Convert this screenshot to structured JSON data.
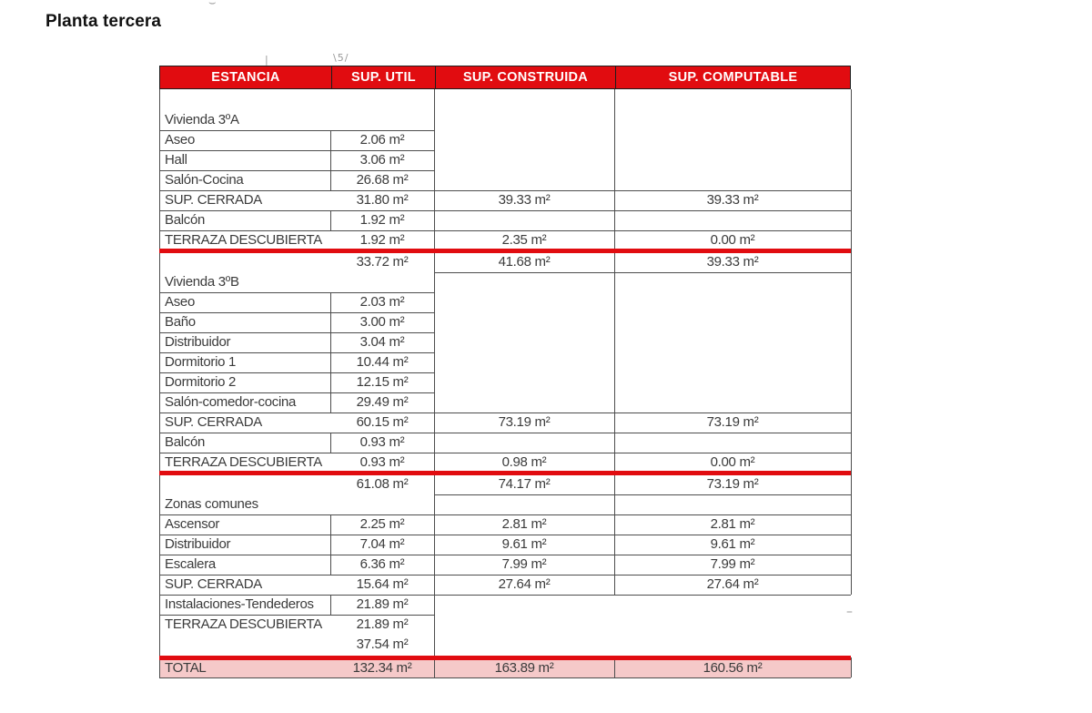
{
  "page_title": "Planta tercera",
  "colors": {
    "header_red": "#e10c10",
    "total_pink": "#f5c9c9",
    "grid": "#4d4d4d",
    "text": "#3b3b3b"
  },
  "table": {
    "headers": [
      "ESTANCIA",
      "SUP. UTIL",
      "SUP. CONSTRUIDA",
      "SUP. COMPUTABLE"
    ],
    "unit": "m²",
    "rows": [
      {
        "kind": "section",
        "name": "Vivienda 3ºA"
      },
      {
        "kind": "item",
        "name": "Aseo",
        "util": "2.06 m²"
      },
      {
        "kind": "item",
        "name": "Hall",
        "util": "3.06 m²"
      },
      {
        "kind": "item",
        "name": "Salón-Cocina",
        "util": "26.68 m²"
      },
      {
        "kind": "cerrada",
        "name": "SUP. CERRADA",
        "util": "31.80 m²",
        "construida": "39.33 m²",
        "computable": "39.33 m²"
      },
      {
        "kind": "balcon",
        "name": "Balcón",
        "util": "1.92 m²"
      },
      {
        "kind": "terraza",
        "name": "TERRAZA DESCUBIERTA",
        "util": "1.92 m²",
        "construida": "2.35 m²",
        "computable": "0.00 m²"
      },
      {
        "kind": "subtotal_section",
        "name": "Vivienda 3ºB",
        "util": "33.72 m²",
        "construida": "41.68 m²",
        "computable": "39.33 m²"
      },
      {
        "kind": "item",
        "name": "Aseo",
        "util": "2.03 m²"
      },
      {
        "kind": "item",
        "name": "Baño",
        "util": "3.00 m²"
      },
      {
        "kind": "item",
        "name": "Distribuidor",
        "util": "3.04 m²"
      },
      {
        "kind": "item",
        "name": "Dormitorio 1",
        "util": "10.44 m²"
      },
      {
        "kind": "item",
        "name": "Dormitorio 2",
        "util": "12.15 m²"
      },
      {
        "kind": "item",
        "name": "Salón-comedor-cocina",
        "util": "29.49 m²"
      },
      {
        "kind": "cerrada",
        "name": "SUP. CERRADA",
        "util": "60.15 m²",
        "construida": "73.19 m²",
        "computable": "73.19 m²"
      },
      {
        "kind": "balcon",
        "name": "Balcón",
        "util": "0.93 m²"
      },
      {
        "kind": "terraza",
        "name": "TERRAZA DESCUBIERTA",
        "util": "0.93 m²",
        "construida": "0.98 m²",
        "computable": "0.00 m²"
      },
      {
        "kind": "subtotal_section",
        "name": "Zonas comunes",
        "util": "61.08 m²",
        "construida": "74.17 m²",
        "computable": "73.19 m²"
      },
      {
        "kind": "row3",
        "name": "Ascensor",
        "util": "2.25 m²",
        "construida": "2.81 m²",
        "computable": "2.81 m²"
      },
      {
        "kind": "row3",
        "name": "Distribuidor",
        "util": "7.04 m²",
        "construida": "9.61 m²",
        "computable": "9.61 m²"
      },
      {
        "kind": "row3",
        "name": "Escalera",
        "util": "6.36 m²",
        "construida": "7.99 m²",
        "computable": "7.99 m²"
      },
      {
        "kind": "cerrada",
        "name": "SUP. CERRADA",
        "util": "15.64 m²",
        "construida": "27.64 m²",
        "computable": "27.64 m²"
      },
      {
        "kind": "item_plain",
        "name": "Instalaciones-Tendederos",
        "util": "21.89 m²"
      },
      {
        "kind": "terraza_stack",
        "name": "TERRAZA DESCUBIERTA",
        "util": "21.89 m²",
        "util2": "37.54 m²"
      },
      {
        "kind": "total",
        "name": "TOTAL",
        "util": "132.34 m²",
        "construida": "163.89 m²",
        "computable": "160.56 m²"
      }
    ]
  },
  "artifacts": {
    "curve": "⌣",
    "tick": "|",
    "label5": "\\5/",
    "dash": "–"
  }
}
